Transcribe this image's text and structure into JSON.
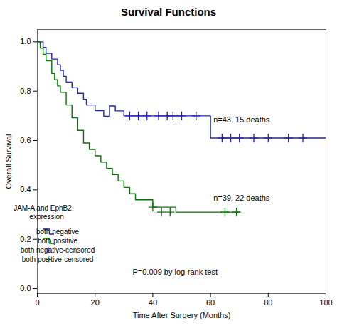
{
  "chart_data": {
    "type": "line",
    "title": "Survival Functions",
    "xlabel": "Time After Surgery (Months)",
    "ylabel": "Overall Survival",
    "xlim": [
      0,
      100
    ],
    "ylim": [
      -0.02,
      1.05
    ],
    "xticks": [
      0,
      20,
      40,
      60,
      80,
      100
    ],
    "yticks": [
      {
        "value": 0.0,
        "label": "0.0"
      },
      {
        "value": 0.2,
        "label": "0.2"
      },
      {
        "value": 0.4,
        "label": "0.4"
      },
      {
        "value": 0.6,
        "label": "0.6"
      },
      {
        "value": 0.8,
        "label": "0.8"
      },
      {
        "value": 1.0,
        "label": "1.0"
      }
    ],
    "grid": false,
    "legend": "lower left",
    "legend_title": "JAM-A and EphB2\n    expression",
    "series": [
      {
        "name": "both negative",
        "type": "step",
        "color": "#2222bb",
        "x": [
          0,
          2,
          3,
          5,
          7,
          8,
          9,
          10,
          12,
          14,
          16,
          17,
          20,
          23,
          25,
          27,
          30,
          55,
          60,
          100
        ],
        "values": [
          1.0,
          0.977,
          0.953,
          0.93,
          0.907,
          0.884,
          0.86,
          0.837,
          0.814,
          0.791,
          0.767,
          0.744,
          0.721,
          0.698,
          0.74,
          0.72,
          0.7,
          0.7,
          0.61,
          0.61
        ]
      },
      {
        "name": "both positive",
        "type": "step",
        "color": "#007700",
        "x": [
          0,
          1,
          2,
          3,
          5,
          6,
          7,
          8,
          10,
          12,
          14,
          16,
          18,
          20,
          22,
          24,
          26,
          28,
          30,
          32,
          34,
          36,
          38,
          40,
          48,
          50,
          60,
          70
        ],
        "values": [
          1.0,
          0.974,
          0.949,
          0.923,
          0.872,
          0.846,
          0.821,
          0.795,
          0.744,
          0.692,
          0.641,
          0.59,
          0.564,
          0.538,
          0.513,
          0.487,
          0.462,
          0.436,
          0.41,
          0.385,
          0.36,
          0.36,
          0.36,
          0.33,
          0.31,
          0.31,
          0.31,
          0.31
        ]
      },
      {
        "name": "both negative-censored",
        "type": "scatter",
        "marker": "+",
        "color": "#2222bb",
        "x": [
          32,
          35,
          38,
          42,
          45,
          47,
          50,
          55,
          64,
          67,
          70,
          75,
          80,
          87,
          92
        ],
        "values": [
          0.7,
          0.7,
          0.7,
          0.7,
          0.7,
          0.7,
          0.7,
          0.7,
          0.61,
          0.61,
          0.61,
          0.61,
          0.61,
          0.61,
          0.61
        ]
      },
      {
        "name": "both positive-censored",
        "type": "scatter",
        "marker": "+",
        "color": "#007700",
        "x": [
          40,
          43,
          46,
          65,
          69
        ],
        "values": [
          0.33,
          0.31,
          0.31,
          0.31,
          0.31
        ]
      }
    ],
    "annotations": [
      {
        "text": "n=43, 15 deaths",
        "x": 61,
        "y": 0.675
      },
      {
        "text": "n=39, 22 deaths",
        "x": 61,
        "y": 0.355
      },
      {
        "text": "P=0.009 by log-rank test",
        "x": 33,
        "y": 0.055
      }
    ]
  }
}
